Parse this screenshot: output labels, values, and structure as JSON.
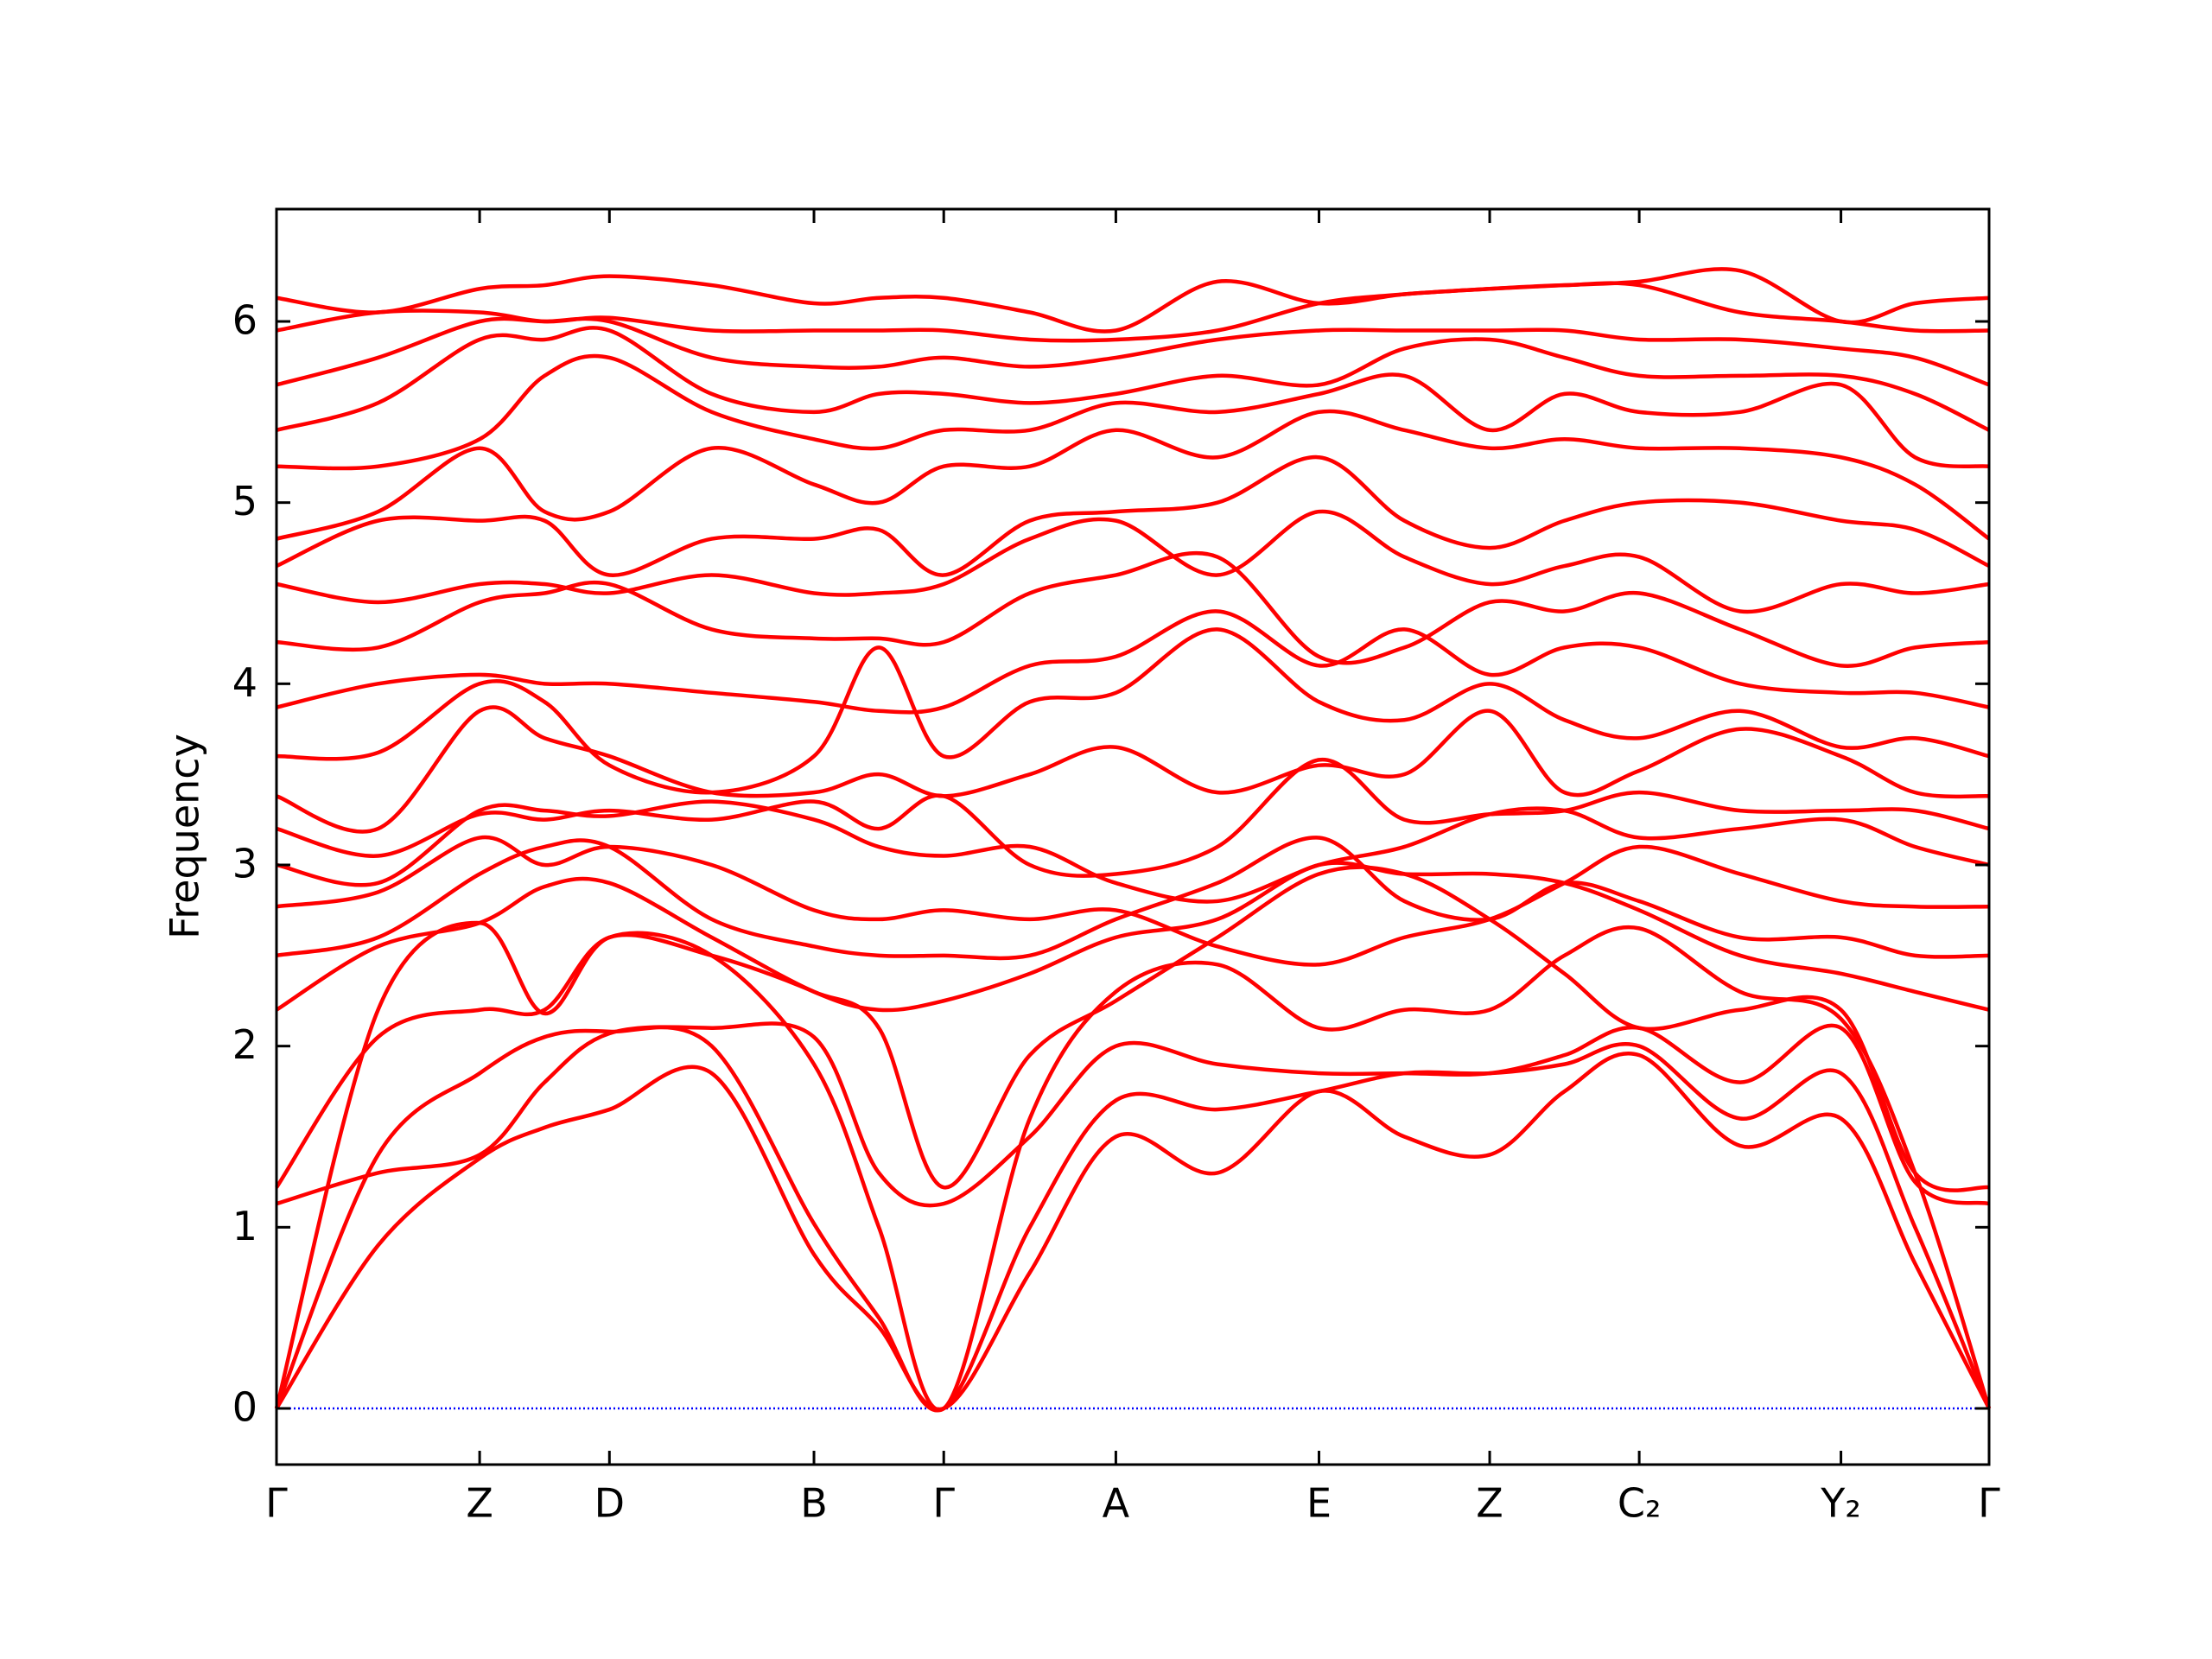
{
  "chart_data": {
    "type": "line",
    "y_label": "Frequency",
    "color": "#ff0000",
    "hline": 0,
    "hline_color": "#0000ff",
    "xlim": [
      0,
      1.214
    ],
    "ylim": [
      -0.31,
      6.62
    ],
    "yticks": [
      0,
      1,
      2,
      3,
      4,
      5,
      6
    ],
    "xticks": [
      {
        "value": 0,
        "label": "Γ"
      },
      {
        "value": 0.144,
        "label": "Z"
      },
      {
        "value": 0.236,
        "label": "D"
      },
      {
        "value": 0.381,
        "label": "B"
      },
      {
        "value": 0.473,
        "label": "Γ"
      },
      {
        "value": 0.595,
        "label": "A"
      },
      {
        "value": 0.739,
        "label": "E"
      },
      {
        "value": 0.86,
        "label": "Z"
      },
      {
        "value": 0.966,
        "label": "C₂"
      },
      {
        "value": 1.109,
        "label": "Y₂"
      },
      {
        "value": 1.214,
        "label": "Γ"
      }
    ],
    "x": [
      0,
      0.072,
      0.144,
      0.19,
      0.236,
      0.3085,
      0.381,
      0.427,
      0.473,
      0.534,
      0.595,
      0.667,
      0.739,
      0.7995,
      0.86,
      0.913,
      0.966,
      1.0375,
      1.109,
      1.1615,
      1.214
    ],
    "series": [
      {
        "values": [
          0,
          0.9,
          1.38,
          1.55,
          1.65,
          1.85,
          0.85,
          0.45,
          0,
          0.75,
          1.5,
          1.3,
          1.75,
          1.5,
          1.4,
          1.75,
          1.95,
          1.45,
          1.6,
          0.8,
          0
        ]
      },
      {
        "values": [
          0,
          1.4,
          1.85,
          2.05,
          2.08,
          2.0,
          1.02,
          0.5,
          0,
          1.0,
          1.7,
          1.65,
          1.75,
          1.85,
          1.85,
          1.9,
          2.0,
          1.6,
          1.85,
          1.0,
          0
        ]
      },
      {
        "values": [
          0,
          2.2,
          2.68,
          2.18,
          2.6,
          2.5,
          1.9,
          1.0,
          0,
          1.6,
          2.3,
          2.45,
          2.1,
          2.2,
          2.2,
          2.5,
          2.65,
          2.3,
          2.15,
          1.3,
          0
        ]
      },
      {
        "values": [
          1.13,
          1.3,
          1.4,
          1.8,
          2.07,
          2.1,
          2.05,
          1.3,
          1.13,
          1.5,
          2.0,
          1.9,
          1.85,
          1.85,
          1.85,
          1.95,
          2.1,
          1.8,
          2.1,
          1.25,
          1.13
        ]
      },
      {
        "values": [
          1.22,
          2.05,
          2.2,
          2.2,
          2.6,
          2.5,
          2.3,
          2.1,
          1.22,
          1.95,
          2.25,
          2.6,
          2.95,
          2.95,
          2.7,
          2.4,
          2.1,
          2.2,
          2.2,
          1.3,
          1.22
        ]
      },
      {
        "values": [
          2.2,
          2.55,
          2.68,
          2.88,
          2.9,
          2.6,
          2.3,
          2.2,
          2.25,
          2.4,
          2.6,
          2.7,
          3.0,
          2.95,
          2.95,
          2.9,
          2.75,
          2.5,
          2.4,
          2.3,
          2.2
        ]
      },
      {
        "values": [
          2.5,
          2.6,
          2.95,
          3.1,
          3.1,
          2.7,
          2.55,
          2.5,
          2.5,
          2.5,
          2.7,
          2.9,
          3.15,
          2.8,
          2.7,
          2.9,
          2.8,
          2.6,
          2.6,
          2.5,
          2.5
        ]
      },
      {
        "values": [
          2.77,
          2.85,
          3.15,
          3.0,
          3.1,
          3.0,
          2.75,
          2.7,
          2.75,
          2.7,
          2.75,
          2.55,
          2.45,
          2.6,
          2.7,
          2.9,
          3.1,
          2.95,
          2.8,
          2.77,
          2.77
        ]
      },
      {
        "values": [
          3.0,
          2.9,
          3.3,
          3.3,
          3.27,
          3.35,
          3.25,
          3.1,
          3.05,
          3.1,
          2.9,
          2.8,
          3.0,
          3.1,
          3.28,
          3.3,
          3.15,
          3.2,
          3.25,
          3.1,
          3.0
        ]
      },
      {
        "values": [
          3.2,
          3.05,
          3.28,
          3.25,
          3.3,
          3.25,
          3.35,
          3.2,
          3.38,
          3.0,
          2.95,
          3.1,
          3.58,
          3.25,
          3.28,
          3.3,
          3.4,
          3.3,
          3.3,
          3.3,
          3.2
        ]
      },
      {
        "values": [
          3.38,
          3.2,
          3.85,
          3.7,
          3.6,
          3.4,
          3.4,
          3.5,
          3.38,
          3.5,
          3.65,
          3.4,
          3.55,
          3.5,
          3.85,
          3.4,
          3.52,
          3.75,
          3.6,
          3.4,
          3.38
        ]
      },
      {
        "values": [
          3.6,
          3.62,
          4.0,
          3.9,
          3.55,
          3.4,
          3.6,
          4.2,
          3.6,
          3.9,
          3.95,
          4.3,
          3.9,
          3.8,
          4.0,
          3.8,
          3.7,
          3.85,
          3.65,
          3.7,
          3.6
        ]
      },
      {
        "values": [
          3.87,
          4.0,
          4.05,
          4.0,
          4.0,
          3.95,
          3.9,
          3.85,
          3.87,
          4.1,
          4.15,
          4.4,
          4.1,
          4.3,
          4.05,
          4.2,
          4.2,
          4.0,
          3.95,
          3.95,
          3.87
        ]
      },
      {
        "values": [
          4.23,
          4.2,
          4.45,
          4.5,
          4.55,
          4.3,
          4.25,
          4.25,
          4.23,
          4.5,
          4.6,
          4.7,
          4.15,
          4.2,
          4.45,
          4.4,
          4.5,
          4.3,
          4.1,
          4.2,
          4.23
        ]
      },
      {
        "values": [
          4.55,
          4.45,
          4.55,
          4.55,
          4.5,
          4.6,
          4.5,
          4.5,
          4.55,
          4.8,
          4.9,
          4.6,
          4.95,
          4.7,
          4.55,
          4.65,
          4.7,
          4.4,
          4.55,
          4.5,
          4.55
        ]
      },
      {
        "values": [
          4.65,
          4.9,
          4.9,
          4.9,
          4.6,
          4.8,
          4.8,
          4.85,
          4.6,
          4.9,
          4.95,
          5.0,
          5.25,
          4.9,
          4.75,
          4.9,
          5.0,
          5.0,
          4.9,
          4.85,
          4.65
        ]
      },
      {
        "values": [
          4.8,
          4.95,
          5.3,
          4.95,
          4.95,
          5.3,
          5.1,
          5.0,
          5.2,
          5.2,
          5.4,
          5.25,
          5.5,
          5.4,
          5.3,
          5.35,
          5.3,
          5.3,
          5.25,
          5.1,
          4.8
        ]
      },
      {
        "values": [
          5.2,
          5.2,
          5.35,
          5.7,
          5.8,
          5.5,
          5.35,
          5.3,
          5.4,
          5.4,
          5.55,
          5.5,
          5.6,
          5.7,
          5.4,
          5.6,
          5.5,
          5.5,
          5.65,
          5.25,
          5.2
        ]
      },
      {
        "values": [
          5.4,
          5.55,
          5.9,
          5.9,
          5.95,
          5.6,
          5.5,
          5.6,
          5.6,
          5.55,
          5.6,
          5.7,
          5.65,
          5.85,
          5.9,
          5.8,
          5.7,
          5.7,
          5.7,
          5.6,
          5.4
        ]
      },
      {
        "values": [
          5.65,
          5.8,
          6.0,
          6.0,
          6.0,
          5.8,
          5.75,
          5.75,
          5.8,
          5.75,
          5.8,
          5.9,
          5.95,
          5.95,
          5.95,
          5.95,
          5.9,
          5.9,
          5.85,
          5.8,
          5.65
        ]
      },
      {
        "values": [
          5.95,
          6.05,
          6.05,
          6.0,
          6.02,
          5.95,
          5.95,
          5.95,
          5.95,
          5.9,
          5.9,
          5.95,
          6.1,
          6.15,
          6.18,
          6.2,
          6.2,
          6.05,
          6.0,
          5.95,
          5.95
        ]
      },
      {
        "values": [
          6.13,
          6.05,
          6.18,
          6.2,
          6.25,
          6.2,
          6.1,
          6.13,
          6.13,
          6.05,
          5.95,
          6.22,
          6.1,
          6.15,
          6.18,
          6.2,
          6.22,
          6.28,
          6.0,
          6.1,
          6.13
        ]
      }
    ]
  }
}
